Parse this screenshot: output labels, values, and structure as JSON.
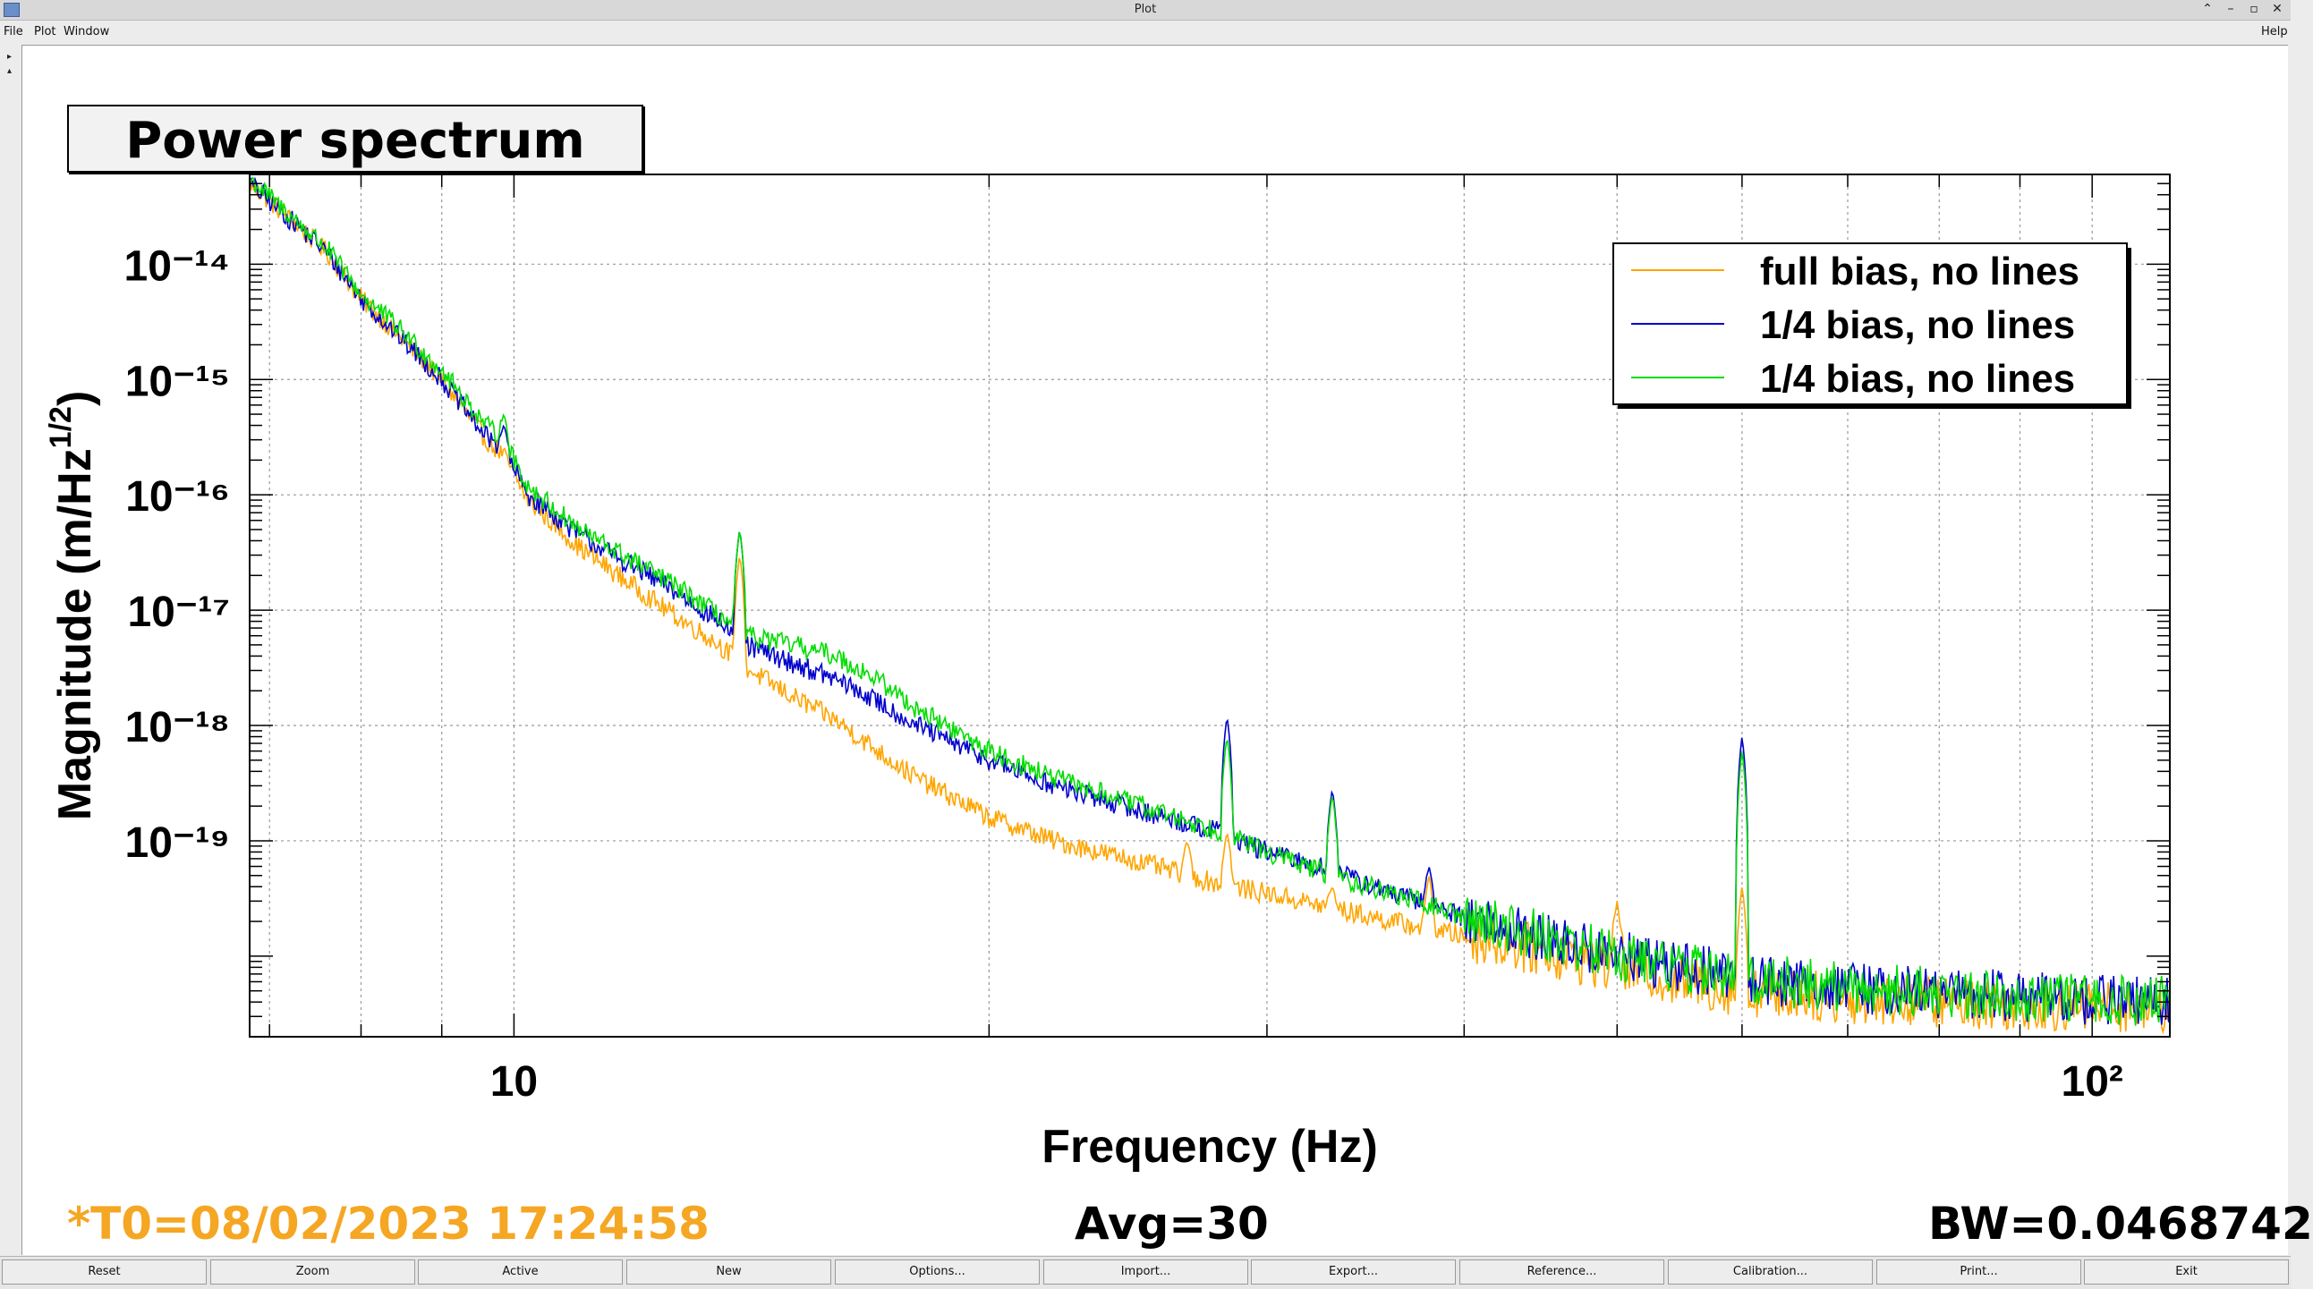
{
  "window": {
    "title": "Plot"
  },
  "menu": {
    "file": "File",
    "plot": "Plot",
    "window": "Window",
    "help": "Help"
  },
  "plot": {
    "title": "Power spectrum"
  },
  "status": {
    "t0": "*T0=08/02/2023 17:24:58",
    "avg": "Avg=30",
    "bw": "BW=0.0468742"
  },
  "colors": {
    "orange": "#FFA500",
    "blue": "#0000CC",
    "green": "#00DD00",
    "t0_text": "#F5A623"
  },
  "buttons": [
    "Reset",
    "Zoom",
    "Active",
    "New",
    "Options...",
    "Import...",
    "Export...",
    "Reference...",
    "Calibration...",
    "Print...",
    "Exit"
  ],
  "chart_data": {
    "type": "line",
    "xlabel": "Frequency (Hz)",
    "ylabel": "Magnitude (m/Hz^1/2)",
    "xscale": "log",
    "yscale": "log",
    "xlim": [
      6.8,
      112
    ],
    "ylim": [
      2e-21,
      6e-14
    ],
    "x_tick_labels": [
      "10",
      "10²"
    ],
    "y_tick_labels": [
      "10⁻¹⁴",
      "10⁻¹⁵",
      "10⁻¹⁶",
      "10⁻¹⁷",
      "10⁻¹⁸",
      "10⁻¹⁹"
    ],
    "grid": true,
    "legend": "top-right",
    "series": [
      {
        "name": "full bias, no lines",
        "color": "#FFA500",
        "x": [
          6.8,
          7.2,
          7.6,
          8.0,
          8.5,
          9.0,
          9.6,
          9.85,
          10.2,
          11,
          12.5,
          13.5,
          14,
          15,
          16,
          17,
          18,
          20,
          22,
          25,
          28,
          30,
          33,
          36,
          40,
          45,
          50,
          55,
          60,
          70,
          80,
          90,
          100,
          112
        ],
        "y": [
          5e-14,
          2.5e-14,
          1.3e-14,
          5e-15,
          2.2e-15,
          1e-15,
          3e-16,
          2.2e-16,
          9e-17,
          3.5e-17,
          1e-17,
          5e-18,
          3.2e-18,
          1.8e-18,
          1.1e-18,
          6e-19,
          3.5e-19,
          1.6e-19,
          1e-19,
          6.5e-20,
          4.2e-20,
          3.5e-20,
          2.6e-20,
          2e-20,
          1.5e-20,
          1.1e-20,
          8e-21,
          6e-21,
          5e-21,
          4.3e-21,
          4e-21,
          3.8e-21,
          3.7e-21,
          3.6e-21
        ],
        "peaks": [
          [
            9.85,
            2e-16
          ],
          [
            13.9,
            3e-17
          ],
          [
            26.7,
            1e-19
          ],
          [
            28.3,
            1.2e-19
          ],
          [
            33,
            4e-20
          ],
          [
            38,
            5e-20
          ],
          [
            50,
            3e-20
          ],
          [
            60,
            4e-20
          ]
        ]
      },
      {
        "name": "1/4 bias, no lines",
        "color": "#0000CC",
        "x": [
          6.8,
          7.2,
          7.6,
          8.0,
          8.5,
          9.0,
          9.6,
          9.85,
          10.2,
          11,
          12.5,
          13.5,
          14,
          15,
          16,
          17,
          18,
          20,
          22,
          25,
          28,
          30,
          33,
          36,
          40,
          45,
          50,
          55,
          60,
          70,
          80,
          90,
          100,
          112
        ],
        "y": [
          5e-14,
          2.5e-14,
          1.3e-14,
          5e-15,
          2.2e-15,
          1e-15,
          3.2e-16,
          2.5e-16,
          1e-16,
          4.5e-17,
          1.6e-17,
          8e-18,
          5e-18,
          3.5e-18,
          2.5e-18,
          1.6e-18,
          1e-18,
          5e-19,
          3e-19,
          1.8e-19,
          1.2e-19,
          8e-20,
          5.5e-20,
          3.5e-20,
          2.2e-20,
          1.4e-20,
          1e-20,
          8e-21,
          6.5e-21,
          5.3e-21,
          4.8e-21,
          4.5e-21,
          4.2e-21,
          4e-21
        ],
        "peaks": [
          [
            9.85,
            4e-16
          ],
          [
            13.9,
            5e-17
          ],
          [
            28.3,
            1.2e-18
          ],
          [
            33,
            2.8e-19
          ],
          [
            38,
            6e-20
          ],
          [
            60,
            8e-19
          ]
        ]
      },
      {
        "name": "1/4 bias, no lines",
        "color": "#00DD00",
        "x": [
          6.8,
          7.2,
          7.6,
          8.0,
          8.5,
          9.0,
          9.6,
          9.85,
          10.2,
          11,
          12.5,
          13.5,
          14,
          15,
          16,
          17,
          18,
          20,
          22,
          25,
          28,
          30,
          33,
          36,
          40,
          45,
          50,
          55,
          60,
          70,
          80,
          90,
          100,
          112
        ],
        "y": [
          5.5e-14,
          2.7e-14,
          1.4e-14,
          5.5e-15,
          2.6e-15,
          1.2e-15,
          4e-16,
          3e-16,
          1.2e-16,
          5e-17,
          1.8e-17,
          9e-18,
          6e-18,
          5e-18,
          4e-18,
          2.5e-18,
          1.4e-18,
          6e-19,
          3.5e-19,
          2e-19,
          1.2e-19,
          8e-20,
          5e-20,
          3.5e-20,
          2.2e-20,
          1.5e-20,
          1e-20,
          8e-21,
          6.5e-21,
          5.3e-21,
          4.8e-21,
          4.5e-21,
          4.2e-21,
          4e-21
        ],
        "peaks": [
          [
            9.85,
            5e-16
          ],
          [
            13.9,
            5e-17
          ],
          [
            28.3,
            8e-19
          ],
          [
            33,
            2.5e-19
          ],
          [
            60,
            6e-19
          ]
        ]
      }
    ]
  }
}
